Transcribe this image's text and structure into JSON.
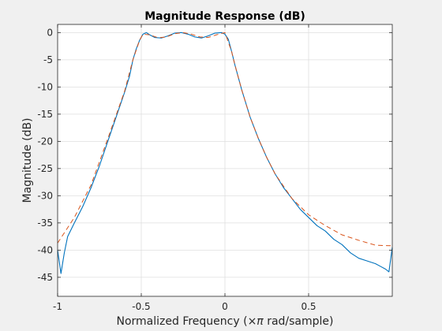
{
  "chart_data": {
    "type": "line",
    "title": "Magnitude Response (dB)",
    "xlabel_prefix": "Normalized Frequency  (",
    "xlabel_symbol": "×π",
    "xlabel_suffix": " rad/sample)",
    "ylabel": "Magnitude (dB)",
    "xlim": [
      -1,
      1
    ],
    "ylim": [
      -48.5,
      1.5
    ],
    "grid": true,
    "x_ticks": [
      -1,
      -0.5,
      0,
      0.5
    ],
    "x_tick_labels": [
      "-1",
      "-0.5",
      "0",
      "0.5"
    ],
    "y_ticks": [
      0,
      -5,
      -10,
      -15,
      -20,
      -25,
      -30,
      -35,
      -40,
      -45
    ],
    "y_tick_labels": [
      "0",
      "-5",
      "-10",
      "-15",
      "-20",
      "-25",
      "-30",
      "-35",
      "-40",
      "-45"
    ],
    "series": [
      {
        "style": "solid",
        "color": "#0072bd",
        "x": [
          -1.0,
          -0.98,
          -0.96,
          -0.94,
          -0.9,
          -0.85,
          -0.8,
          -0.75,
          -0.7,
          -0.65,
          -0.6,
          -0.57,
          -0.55,
          -0.53,
          -0.51,
          -0.49,
          -0.47,
          -0.45,
          -0.42,
          -0.38,
          -0.34,
          -0.3,
          -0.26,
          -0.22,
          -0.18,
          -0.14,
          -0.1,
          -0.06,
          -0.02,
          0.0,
          0.02,
          0.04,
          0.06,
          0.1,
          0.15,
          0.2,
          0.25,
          0.3,
          0.35,
          0.4,
          0.45,
          0.5,
          0.55,
          0.6,
          0.65,
          0.7,
          0.75,
          0.8,
          0.85,
          0.9,
          0.93,
          0.96,
          0.98,
          1.0
        ],
        "y": [
          -40.0,
          -44.3,
          -40.5,
          -37.5,
          -35.0,
          -32.0,
          -28.5,
          -24.5,
          -20.0,
          -15.5,
          -11.0,
          -8.0,
          -5.0,
          -3.0,
          -1.4,
          -0.3,
          0.0,
          -0.4,
          -0.9,
          -1.0,
          -0.6,
          -0.1,
          0.0,
          -0.3,
          -0.8,
          -1.0,
          -0.6,
          -0.1,
          0.0,
          -0.3,
          -1.2,
          -3.5,
          -6.0,
          -10.5,
          -15.5,
          -19.5,
          -23.0,
          -26.0,
          -28.5,
          -30.5,
          -32.5,
          -34.0,
          -35.5,
          -36.5,
          -38.0,
          -39.0,
          -40.5,
          -41.5,
          -42.0,
          -42.5,
          -43.0,
          -43.5,
          -44.0,
          -39.5
        ]
      },
      {
        "style": "dashed",
        "color": "#d95319",
        "x": [
          -1.0,
          -0.9,
          -0.8,
          -0.7,
          -0.6,
          -0.55,
          -0.51,
          -0.49,
          -0.45,
          -0.4,
          -0.35,
          -0.3,
          -0.25,
          -0.2,
          -0.15,
          -0.1,
          -0.05,
          0.0,
          0.04,
          0.06,
          0.1,
          0.15,
          0.2,
          0.25,
          0.3,
          0.4,
          0.5,
          0.6,
          0.7,
          0.8,
          0.9,
          1.0
        ],
        "y": [
          -38.7,
          -34.0,
          -28.0,
          -19.5,
          -10.8,
          -5.0,
          -1.4,
          -0.3,
          -0.4,
          -0.95,
          -0.8,
          -0.2,
          0.0,
          -0.3,
          -0.8,
          -0.9,
          -0.4,
          0.0,
          -3.5,
          -6.0,
          -10.5,
          -15.5,
          -19.5,
          -23.0,
          -26.0,
          -30.5,
          -33.5,
          -35.5,
          -37.2,
          -38.2,
          -39.1,
          -39.2
        ]
      }
    ]
  }
}
